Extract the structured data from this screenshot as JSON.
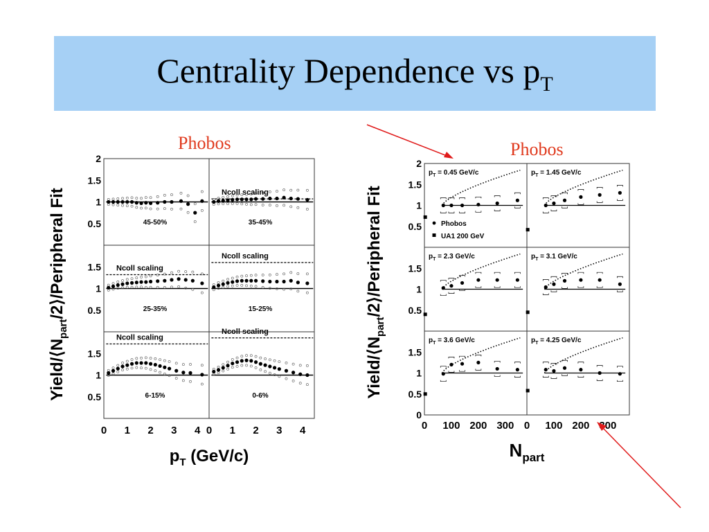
{
  "slide": {
    "title_main": "Centrality Dependence vs p",
    "title_sub": "T",
    "background": "#ffffff",
    "title_bar_color": "#a6d0f5"
  },
  "labels": {
    "phobos_left": "Phobos",
    "phobos_right": "Phobos",
    "color_phobos_label": "#e03a1e",
    "arrow_color": "#e01a1a"
  },
  "chart_data": [
    {
      "type": "scatter",
      "name_text": "left-figure",
      "ylabel": "Yield/⟨Npart/2⟩/Peripheral Fit",
      "xlabel": "pT (GeV/c)",
      "xlim": [
        0,
        4.5
      ],
      "ylim": [
        0,
        2
      ],
      "x_ticks": [
        "0",
        "1",
        "2",
        "3",
        "4"
      ],
      "y_ticks": [
        "0.5",
        "1",
        "1.5",
        "2"
      ],
      "ncoll_label": "Ncoll scaling",
      "panels": [
        {
          "label": "45-50%",
          "ncoll": null,
          "points": [
            [
              0.2,
              1.0
            ],
            [
              0.4,
              1.0
            ],
            [
              0.6,
              1.0
            ],
            [
              0.8,
              1.0
            ],
            [
              1.0,
              1.0
            ],
            [
              1.2,
              1.0
            ],
            [
              1.4,
              0.98
            ],
            [
              1.6,
              0.97
            ],
            [
              1.8,
              0.98
            ],
            [
              2.0,
              0.97
            ],
            [
              2.3,
              0.98
            ],
            [
              2.6,
              1.0
            ],
            [
              2.9,
              1.0
            ],
            [
              3.3,
              1.02
            ],
            [
              3.6,
              0.95
            ],
            [
              3.9,
              0.75
            ],
            [
              4.2,
              1.02
            ]
          ]
        },
        {
          "label": "35-45%",
          "ncoll": 1.07,
          "points": [
            [
              0.2,
              1.0
            ],
            [
              0.4,
              1.02
            ],
            [
              0.6,
              1.03
            ],
            [
              0.8,
              1.04
            ],
            [
              1.0,
              1.05
            ],
            [
              1.2,
              1.06
            ],
            [
              1.4,
              1.06
            ],
            [
              1.6,
              1.06
            ],
            [
              1.8,
              1.06
            ],
            [
              2.0,
              1.07
            ],
            [
              2.3,
              1.07
            ],
            [
              2.6,
              1.08
            ],
            [
              2.9,
              1.08
            ],
            [
              3.2,
              1.1
            ],
            [
              3.5,
              1.08
            ],
            [
              3.8,
              1.07
            ],
            [
              4.2,
              1.05
            ]
          ]
        },
        {
          "label": "25-35%",
          "ncoll": 1.32,
          "points": [
            [
              0.2,
              1.02
            ],
            [
              0.4,
              1.05
            ],
            [
              0.6,
              1.08
            ],
            [
              0.8,
              1.1
            ],
            [
              1.0,
              1.12
            ],
            [
              1.2,
              1.13
            ],
            [
              1.4,
              1.14
            ],
            [
              1.6,
              1.15
            ],
            [
              1.8,
              1.15
            ],
            [
              2.0,
              1.16
            ],
            [
              2.3,
              1.17
            ],
            [
              2.6,
              1.18
            ],
            [
              2.9,
              1.2
            ],
            [
              3.2,
              1.22
            ],
            [
              3.5,
              1.2
            ],
            [
              3.8,
              1.18
            ],
            [
              4.2,
              1.12
            ]
          ]
        },
        {
          "label": "15-25%",
          "ncoll": 1.6,
          "points": [
            [
              0.2,
              1.03
            ],
            [
              0.4,
              1.07
            ],
            [
              0.6,
              1.1
            ],
            [
              0.8,
              1.13
            ],
            [
              1.0,
              1.15
            ],
            [
              1.2,
              1.17
            ],
            [
              1.4,
              1.18
            ],
            [
              1.6,
              1.18
            ],
            [
              1.8,
              1.18
            ],
            [
              2.0,
              1.18
            ],
            [
              2.3,
              1.17
            ],
            [
              2.6,
              1.16
            ],
            [
              2.9,
              1.16
            ],
            [
              3.2,
              1.16
            ],
            [
              3.5,
              1.18
            ],
            [
              3.8,
              1.14
            ],
            [
              4.2,
              1.12
            ]
          ]
        },
        {
          "label": "6-15%",
          "ncoll": 1.72,
          "points": [
            [
              0.2,
              1.05
            ],
            [
              0.4,
              1.1
            ],
            [
              0.6,
              1.15
            ],
            [
              0.8,
              1.2
            ],
            [
              1.0,
              1.23
            ],
            [
              1.2,
              1.26
            ],
            [
              1.4,
              1.28
            ],
            [
              1.6,
              1.28
            ],
            [
              1.8,
              1.28
            ],
            [
              2.0,
              1.26
            ],
            [
              2.2,
              1.24
            ],
            [
              2.4,
              1.21
            ],
            [
              2.6,
              1.18
            ],
            [
              2.8,
              1.15
            ],
            [
              3.1,
              1.1
            ],
            [
              3.4,
              1.06
            ],
            [
              3.7,
              1.05
            ],
            [
              4.2,
              1.01
            ]
          ]
        },
        {
          "label": "0-6%",
          "ncoll": 1.86,
          "points": [
            [
              0.2,
              1.08
            ],
            [
              0.4,
              1.12
            ],
            [
              0.6,
              1.17
            ],
            [
              0.8,
              1.22
            ],
            [
              1.0,
              1.27
            ],
            [
              1.2,
              1.3
            ],
            [
              1.4,
              1.33
            ],
            [
              1.6,
              1.34
            ],
            [
              1.8,
              1.33
            ],
            [
              2.0,
              1.3
            ],
            [
              2.2,
              1.26
            ],
            [
              2.4,
              1.23
            ],
            [
              2.6,
              1.2
            ],
            [
              2.8,
              1.17
            ],
            [
              3.0,
              1.14
            ],
            [
              3.3,
              1.1
            ],
            [
              3.6,
              1.06
            ],
            [
              3.9,
              1.02
            ],
            [
              4.2,
              1.0
            ]
          ]
        }
      ]
    },
    {
      "type": "scatter",
      "name_text": "right-figure",
      "ylabel": "Yield/⟨Npart/2⟩/Peripheral Fit",
      "xlabel": "Npart",
      "xlim": [
        0,
        380
      ],
      "ylim": [
        0,
        2
      ],
      "x_ticks": [
        "0",
        "100",
        "200",
        "300"
      ],
      "y_ticks": [
        "0",
        "0.5",
        "1",
        "1.5",
        "2"
      ],
      "legend": {
        "phobos": "Phobos",
        "ua1": "UA1 200 GeV"
      },
      "panels": [
        {
          "label": "pT = 0.45 GeV/c",
          "ua1": 0.72,
          "points": [
            [
              70,
              1.0
            ],
            [
              100,
              1.0
            ],
            [
              140,
              1.0
            ],
            [
              200,
              1.02
            ],
            [
              270,
              1.05
            ],
            [
              345,
              1.12
            ]
          ]
        },
        {
          "label": "pT = 1.45 GeV/c",
          "ua1": 0.42,
          "points": [
            [
              70,
              1.0
            ],
            [
              100,
              1.05
            ],
            [
              140,
              1.12
            ],
            [
              200,
              1.2
            ],
            [
              270,
              1.25
            ],
            [
              345,
              1.3
            ]
          ]
        },
        {
          "label": "pT = 2.3 GeV/c",
          "ua1": 0.4,
          "points": [
            [
              70,
              1.03
            ],
            [
              100,
              1.08
            ],
            [
              140,
              1.15
            ],
            [
              200,
              1.22
            ],
            [
              270,
              1.22
            ],
            [
              345,
              1.22
            ]
          ]
        },
        {
          "label": "pT = 3.1 GeV/c",
          "ua1": 0.45,
          "points": [
            [
              70,
              1.05
            ],
            [
              100,
              1.12
            ],
            [
              140,
              1.2
            ],
            [
              200,
              1.22
            ],
            [
              270,
              1.22
            ],
            [
              345,
              1.12
            ]
          ]
        },
        {
          "label": "pT = 3.6 GeV/c",
          "ua1": 0.5,
          "points": [
            [
              70,
              0.98
            ],
            [
              100,
              1.2
            ],
            [
              140,
              1.22
            ],
            [
              200,
              1.25
            ],
            [
              270,
              1.1
            ],
            [
              345,
              1.08
            ]
          ]
        },
        {
          "label": "pT = 4.25 GeV/c",
          "ua1": 0.58,
          "points": [
            [
              70,
              1.08
            ],
            [
              100,
              1.05
            ],
            [
              140,
              1.12
            ],
            [
              200,
              1.08
            ],
            [
              270,
              1.0
            ],
            [
              345,
              0.98
            ]
          ]
        }
      ]
    }
  ]
}
